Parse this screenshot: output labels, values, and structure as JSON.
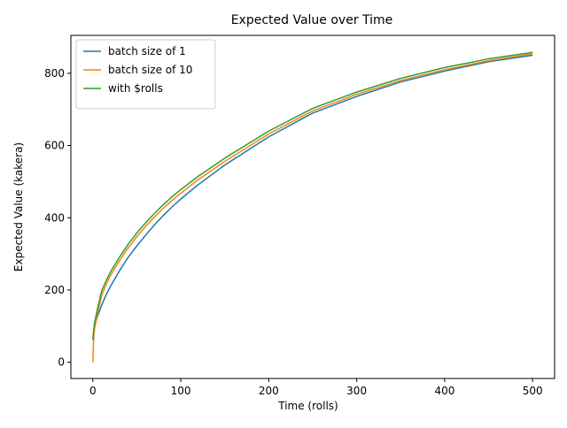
{
  "chart_data": {
    "type": "line",
    "title": "Expected Value over Time",
    "xlabel": "Time (rolls)",
    "ylabel": "Expected Value (kakera)",
    "xlim": [
      -25,
      525
    ],
    "ylim": [
      -45,
      905
    ],
    "xticks": [
      0,
      100,
      200,
      300,
      400,
      500
    ],
    "yticks": [
      0,
      200,
      400,
      600,
      800
    ],
    "grid": false,
    "legend_position": "top-left",
    "series": [
      {
        "name": "batch size of 1",
        "color": "#1f77b4",
        "points": [
          [
            0,
            62
          ],
          [
            1,
            85
          ],
          [
            2,
            100
          ],
          [
            5,
            125
          ],
          [
            10,
            158
          ],
          [
            15,
            186
          ],
          [
            20,
            210
          ],
          [
            30,
            252
          ],
          [
            40,
            290
          ],
          [
            50,
            322
          ],
          [
            60,
            352
          ],
          [
            70,
            380
          ],
          [
            80,
            406
          ],
          [
            90,
            430
          ],
          [
            100,
            452
          ],
          [
            120,
            492
          ],
          [
            150,
            546
          ],
          [
            200,
            624
          ],
          [
            250,
            690
          ],
          [
            300,
            736
          ],
          [
            350,
            776
          ],
          [
            400,
            806
          ],
          [
            450,
            832
          ],
          [
            500,
            850
          ]
        ]
      },
      {
        "name": "batch size of 10",
        "color": "#ff7f0e",
        "points": [
          [
            0,
            0
          ],
          [
            0.5,
            40
          ],
          [
            1,
            70
          ],
          [
            2,
            95
          ],
          [
            5,
            130
          ],
          [
            10,
            185
          ],
          [
            15,
            215
          ],
          [
            20,
            240
          ],
          [
            30,
            280
          ],
          [
            40,
            316
          ],
          [
            50,
            348
          ],
          [
            60,
            376
          ],
          [
            70,
            402
          ],
          [
            80,
            426
          ],
          [
            90,
            448
          ],
          [
            100,
            468
          ],
          [
            120,
            506
          ],
          [
            150,
            556
          ],
          [
            200,
            632
          ],
          [
            250,
            696
          ],
          [
            300,
            742
          ],
          [
            350,
            780
          ],
          [
            400,
            810
          ],
          [
            450,
            835
          ],
          [
            500,
            854
          ]
        ]
      },
      {
        "name": "with $rolls",
        "color": "#2ca02c",
        "points": [
          [
            0,
            62
          ],
          [
            1,
            90
          ],
          [
            2,
            110
          ],
          [
            5,
            145
          ],
          [
            10,
            198
          ],
          [
            15,
            225
          ],
          [
            20,
            250
          ],
          [
            30,
            290
          ],
          [
            40,
            326
          ],
          [
            50,
            358
          ],
          [
            60,
            386
          ],
          [
            70,
            412
          ],
          [
            80,
            436
          ],
          [
            90,
            458
          ],
          [
            100,
            478
          ],
          [
            120,
            515
          ],
          [
            150,
            565
          ],
          [
            200,
            640
          ],
          [
            250,
            703
          ],
          [
            300,
            748
          ],
          [
            350,
            786
          ],
          [
            400,
            816
          ],
          [
            450,
            840
          ],
          [
            500,
            858
          ]
        ]
      }
    ]
  }
}
